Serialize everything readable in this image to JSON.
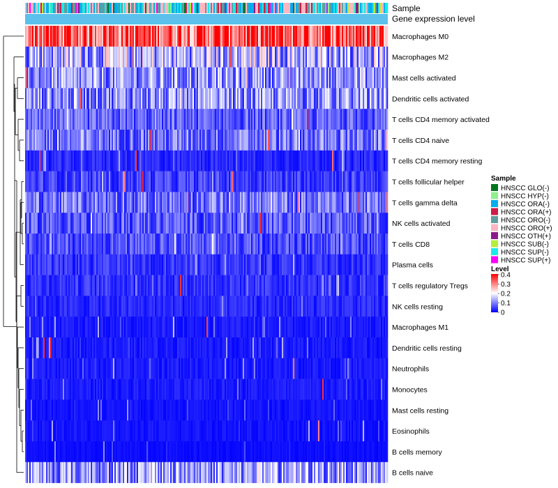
{
  "chart_data": {
    "type": "heatmap",
    "annotation_labels": [
      "Sample",
      "Gene expression level"
    ],
    "rows": [
      "Macrophages M0",
      "Macrophages M2",
      "Mast cells activated",
      "Dendritic cells activated",
      "T cells CD4 memory activated",
      "T cells CD4 naive",
      "T cells CD4 memory resting",
      "T cells follicular helper",
      "T cells gamma delta",
      "NK cells activated",
      "T cells CD8",
      "Plasma cells",
      "T cells regulatory  Tregs",
      "NK cells resting",
      "Macrophages M1",
      "Dendritic cells resting",
      "Neutrophils",
      "Monocytes",
      "Mast cells resting",
      "Eosinophils",
      "B cells memory",
      "B cells naive"
    ],
    "row_mean_levels": [
      0.34,
      0.14,
      0.11,
      0.11,
      0.07,
      0.09,
      0.03,
      0.05,
      0.09,
      0.07,
      0.06,
      0.04,
      0.04,
      0.03,
      0.02,
      0.02,
      0.02,
      0.02,
      0.015,
      0.015,
      0.01,
      0.12
    ],
    "n_samples": 260,
    "sample_legend": {
      "title": "Sample",
      "items": [
        {
          "label": "HNSCC GLO(-)",
          "color": "#00761f"
        },
        {
          "label": "HNSCC HYP(-)",
          "color": "#8ef08e"
        },
        {
          "label": "HNSCC ORA(-)",
          "color": "#00aeef"
        },
        {
          "label": "HNSCC ORA(+)",
          "color": "#d01c48"
        },
        {
          "label": "HNSCC ORO(-)",
          "color": "#5f9ea0"
        },
        {
          "label": "HNSCC ORO(+)",
          "color": "#ffb6c1"
        },
        {
          "label": "HNSCC OTH(+)",
          "color": "#8b1a8b"
        },
        {
          "label": "HNSCC SUB(-)",
          "color": "#b3ee3a"
        },
        {
          "label": "HNSCC SUP(-)",
          "color": "#1aeaea"
        },
        {
          "label": "HNSCC SUP(+)",
          "color": "#ff00ff"
        }
      ]
    },
    "level_legend": {
      "title": "Level",
      "ticks": [
        "0.4",
        "0.3",
        "0.2",
        "0.1",
        "0"
      ],
      "range": [
        0,
        0.4
      ],
      "colors": [
        "#0000ff",
        "#ffffff",
        "#ff0000"
      ]
    },
    "gene_expression_bar_color": "#5bc0eb"
  }
}
